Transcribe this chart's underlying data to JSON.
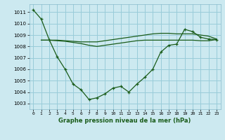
{
  "title": "Graphe pression niveau de la mer (hPa)",
  "background_color": "#cce9f0",
  "grid_color": "#99ccd9",
  "line_color": "#1a5c1a",
  "xlim": [
    -0.5,
    23.5
  ],
  "ylim": [
    1002.5,
    1011.7
  ],
  "yticks": [
    1003,
    1004,
    1005,
    1006,
    1007,
    1008,
    1009,
    1010,
    1011
  ],
  "xticks": [
    0,
    1,
    2,
    3,
    4,
    5,
    6,
    7,
    8,
    9,
    10,
    11,
    12,
    13,
    14,
    15,
    16,
    17,
    18,
    19,
    20,
    21,
    22,
    23
  ],
  "xtick_labels": [
    "0",
    "1",
    "2",
    "3",
    "4",
    "5",
    "6",
    "7",
    "8",
    "9",
    "10",
    "11",
    "12",
    "13",
    "14",
    "15",
    "16",
    "17",
    "18",
    "19",
    "20",
    "21",
    "22",
    "23"
  ],
  "main_x": [
    0,
    1,
    2,
    3,
    4,
    5,
    6,
    7,
    8,
    9,
    10,
    11,
    12,
    13,
    14,
    15,
    16,
    17,
    18,
    19,
    20,
    21,
    22,
    23
  ],
  "main_y": [
    1011.2,
    1010.4,
    1008.6,
    1007.1,
    1006.0,
    1004.7,
    1004.2,
    1003.35,
    1003.5,
    1003.85,
    1004.35,
    1004.5,
    1004.0,
    1004.7,
    1005.3,
    1006.0,
    1007.5,
    1008.1,
    1008.2,
    1009.5,
    1009.3,
    1008.8,
    1008.65,
    1008.6
  ],
  "flat1_x": [
    1,
    2,
    3,
    4,
    5,
    6,
    7,
    8,
    9,
    10,
    11,
    12,
    13,
    14,
    15,
    16,
    17,
    18,
    19,
    20,
    21,
    22,
    23
  ],
  "flat1_y": [
    1008.55,
    1008.55,
    1008.55,
    1008.5,
    1008.45,
    1008.4,
    1008.4,
    1008.4,
    1008.5,
    1008.6,
    1008.7,
    1008.8,
    1008.9,
    1009.0,
    1009.1,
    1009.15,
    1009.15,
    1009.1,
    1009.1,
    1009.1,
    1009.0,
    1008.9,
    1008.65
  ],
  "flat2_x": [
    1,
    2,
    3,
    4,
    5,
    6,
    7,
    8,
    9,
    10,
    11,
    12,
    13,
    14,
    15,
    16,
    17,
    18,
    19,
    20,
    21,
    22,
    23
  ],
  "flat2_y": [
    1008.55,
    1008.55,
    1008.5,
    1008.45,
    1008.35,
    1008.25,
    1008.1,
    1008.0,
    1008.1,
    1008.2,
    1008.3,
    1008.4,
    1008.5,
    1008.55,
    1008.55,
    1008.55,
    1008.55,
    1008.55,
    1008.55,
    1008.55,
    1008.5,
    1008.5,
    1008.6
  ]
}
